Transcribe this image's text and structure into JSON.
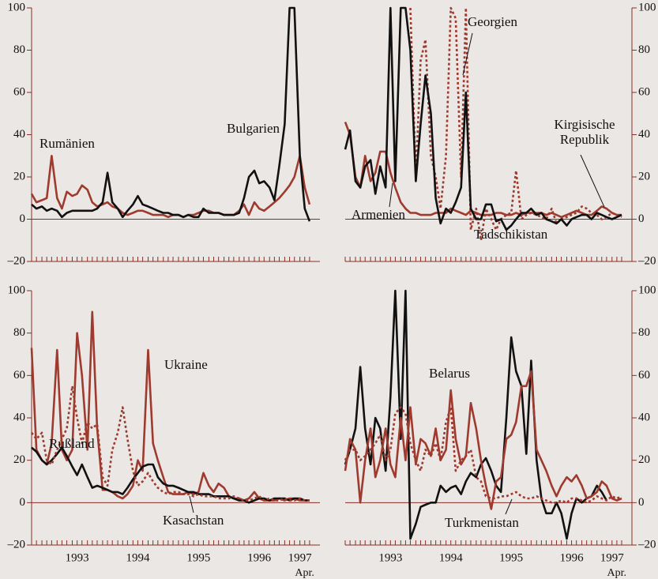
{
  "chart_data": [
    {
      "type": "line",
      "y_axis": "left",
      "zero_line": true,
      "xlim": [
        1992.75,
        1997.5
      ],
      "ylim": [
        -20,
        100
      ],
      "yticks": [
        {
          "value": -20,
          "label": "–20"
        },
        0,
        20,
        40,
        60,
        80,
        100
      ],
      "x": [
        1992.75,
        1992.83,
        1992.92,
        1993,
        1993.08,
        1993.17,
        1993.25,
        1993.33,
        1993.42,
        1993.5,
        1993.58,
        1993.67,
        1993.75,
        1993.83,
        1993.92,
        1994,
        1994.08,
        1994.17,
        1994.25,
        1994.33,
        1994.42,
        1994.5,
        1994.58,
        1994.67,
        1994.75,
        1994.83,
        1994.92,
        1995,
        1995.08,
        1995.17,
        1995.25,
        1995.33,
        1995.42,
        1995.5,
        1995.58,
        1995.67,
        1995.75,
        1995.83,
        1995.92,
        1996,
        1996.08,
        1996.17,
        1996.25,
        1996.33,
        1996.42,
        1996.5,
        1996.58,
        1996.67,
        1996.75,
        1996.83,
        1996.92,
        1997,
        1997.08,
        1997.17,
        1997.25,
        1997.33
      ],
      "series": [
        {
          "name": "Rumänien",
          "color": "#9e3a2e",
          "dash": false,
          "values": [
            12,
            8,
            9,
            10,
            30,
            10,
            5,
            13,
            11,
            12,
            16,
            14,
            8,
            6,
            7,
            8,
            6,
            5,
            3,
            2,
            3,
            4,
            4,
            3,
            2,
            2,
            2,
            1,
            2,
            2,
            1,
            2,
            2,
            3,
            4,
            4,
            3,
            3,
            2,
            2,
            2,
            4,
            7,
            2,
            8,
            5,
            4,
            6,
            8,
            10,
            13,
            16,
            20,
            30,
            15,
            7
          ]
        },
        {
          "name": "Bulgarien",
          "color": "#111111",
          "dash": false,
          "values": [
            7,
            5,
            6,
            4,
            5,
            4,
            1,
            3,
            4,
            4,
            4,
            4,
            4,
            5,
            8,
            22,
            8,
            5,
            1,
            4,
            7,
            11,
            7,
            6,
            5,
            4,
            3,
            3,
            2,
            2,
            1,
            2,
            1,
            1,
            5,
            3,
            3,
            3,
            2,
            2,
            2,
            3,
            10,
            20,
            23,
            17,
            18,
            15,
            9,
            25,
            45,
            100,
            100,
            30,
            5,
            -1
          ]
        }
      ]
    },
    {
      "type": "line",
      "y_axis": "right",
      "zero_line": true,
      "xlim": [
        1992.75,
        1997.5
      ],
      "ylim": [
        -20,
        100
      ],
      "yticks": [
        {
          "value": -20,
          "label": "–20"
        },
        0,
        20,
        40,
        60,
        80,
        100
      ],
      "x": [
        1992.75,
        1992.83,
        1992.92,
        1993,
        1993.08,
        1993.17,
        1993.25,
        1993.33,
        1993.42,
        1993.5,
        1993.58,
        1993.67,
        1993.75,
        1993.83,
        1993.92,
        1994,
        1994.08,
        1994.17,
        1994.25,
        1994.33,
        1994.42,
        1994.5,
        1994.58,
        1994.67,
        1994.75,
        1994.83,
        1994.92,
        1995,
        1995.08,
        1995.17,
        1995.25,
        1995.33,
        1995.42,
        1995.5,
        1995.58,
        1995.67,
        1995.75,
        1995.83,
        1995.92,
        1996,
        1996.08,
        1996.17,
        1996.25,
        1996.33,
        1996.42,
        1996.5,
        1996.58,
        1996.67,
        1996.75,
        1996.83,
        1996.92,
        1997,
        1997.08,
        1997.17,
        1997.25,
        1997.33
      ],
      "series": [
        {
          "name": "Armenien",
          "color": "#9e3a2e",
          "dash": false,
          "values": [
            46,
            40,
            20,
            15,
            30,
            18,
            22,
            32,
            32,
            22,
            15,
            8,
            5,
            3,
            3,
            2,
            2,
            2,
            3,
            3,
            3,
            5,
            4,
            3,
            2,
            4,
            3,
            2,
            2,
            2,
            3,
            3,
            2,
            2,
            3,
            2,
            3,
            3,
            3,
            3,
            2,
            3,
            2,
            1,
            2,
            3,
            4,
            3,
            2,
            2,
            4,
            6,
            5,
            3,
            2,
            2
          ]
        },
        {
          "name": "Georgien",
          "color": "#9e3a2e",
          "dash": true,
          "values": [
            null,
            null,
            null,
            null,
            null,
            null,
            null,
            null,
            null,
            null,
            null,
            null,
            null,
            100,
            20,
            75,
            85,
            30,
            20,
            5,
            30,
            100,
            95,
            20,
            100,
            -5,
            5,
            -10,
            5,
            0,
            -5,
            0,
            2,
            3,
            23,
            0,
            2,
            3,
            2,
            1,
            0,
            5,
            -2,
            0,
            1,
            2,
            3,
            6,
            5,
            3,
            2,
            0,
            1,
            3,
            2,
            1
          ]
        },
        {
          "name": "Kirgisische Republik",
          "color": "#111111",
          "dash": false,
          "values": [
            33,
            42,
            18,
            15,
            25,
            28,
            12,
            25,
            15,
            100,
            18,
            100,
            100,
            80,
            18,
            45,
            68,
            50,
            10,
            -2,
            5,
            3,
            8,
            15,
            60,
            5,
            0,
            0,
            7,
            7,
            -1,
            0,
            -5,
            -3,
            0,
            3,
            3,
            5,
            2,
            3,
            0,
            -1,
            -2,
            0,
            -3,
            0,
            1,
            2,
            2,
            0,
            3,
            2,
            1,
            0,
            1,
            2
          ]
        }
      ]
    },
    {
      "type": "line",
      "y_axis": "left",
      "zero_line": true,
      "xlim": [
        1992.75,
        1997.5
      ],
      "ylim": [
        -20,
        100
      ],
      "yticks": [
        {
          "value": -20,
          "label": "–20"
        },
        0,
        20,
        40,
        60,
        80,
        100
      ],
      "xticks": [
        {
          "value": 1993.5,
          "label": "1993"
        },
        {
          "value": 1994.5,
          "label": "1994"
        },
        {
          "value": 1995.5,
          "label": "1995"
        },
        {
          "value": 1996.5,
          "label": "1996"
        },
        {
          "value": 1997.17,
          "label": "1997"
        }
      ],
      "annotation": "Apr.",
      "x": [
        1992.75,
        1992.83,
        1992.92,
        1993,
        1993.08,
        1993.17,
        1993.25,
        1993.33,
        1993.42,
        1993.5,
        1993.58,
        1993.67,
        1993.75,
        1993.83,
        1993.92,
        1994,
        1994.08,
        1994.17,
        1994.25,
        1994.33,
        1994.42,
        1994.5,
        1994.58,
        1994.67,
        1994.75,
        1994.83,
        1994.92,
        1995,
        1995.08,
        1995.17,
        1995.25,
        1995.33,
        1995.42,
        1995.5,
        1995.58,
        1995.67,
        1995.75,
        1995.83,
        1995.92,
        1996,
        1996.08,
        1996.17,
        1996.25,
        1996.33,
        1996.42,
        1996.5,
        1996.58,
        1996.67,
        1996.75,
        1996.83,
        1996.92,
        1997,
        1997.08,
        1997.17,
        1997.25,
        1997.33
      ],
      "series": [
        {
          "name": "Ukraine",
          "color": "#9e3a2e",
          "dash": false,
          "values": [
            73,
            25,
            20,
            18,
            28,
            72,
            25,
            20,
            25,
            80,
            60,
            25,
            90,
            35,
            6,
            6,
            5,
            3,
            2,
            4,
            8,
            20,
            15,
            72,
            28,
            20,
            12,
            5,
            4,
            4,
            4,
            5,
            4,
            5,
            14,
            8,
            5,
            9,
            7,
            3,
            2,
            2,
            1,
            2,
            5,
            2,
            1,
            1,
            1,
            2,
            1,
            2,
            2,
            1,
            1,
            1
          ]
        },
        {
          "name": "Rußland",
          "color": "#111111",
          "dash": false,
          "values": [
            26,
            24,
            20,
            18,
            20,
            23,
            26,
            22,
            17,
            13,
            18,
            12,
            7,
            8,
            7,
            6,
            5,
            5,
            4,
            7,
            11,
            14,
            17,
            18,
            18,
            12,
            9,
            8,
            8,
            7,
            6,
            5,
            5,
            4,
            4,
            4,
            3,
            3,
            3,
            3,
            2,
            1,
            1,
            0,
            1,
            2,
            2,
            1,
            2,
            2,
            2,
            1,
            2,
            2,
            1,
            1
          ]
        },
        {
          "name": "Kasachstan",
          "color": "#9e3a2e",
          "dash": true,
          "values": [
            33,
            30,
            33,
            20,
            18,
            25,
            30,
            35,
            55,
            40,
            28,
            38,
            35,
            37,
            12,
            8,
            25,
            33,
            45,
            30,
            15,
            8,
            10,
            14,
            10,
            7,
            5,
            4,
            5,
            5,
            4,
            4,
            3,
            4,
            3,
            3,
            3,
            2,
            2,
            2,
            3,
            2,
            1,
            1,
            2,
            3,
            1,
            2,
            1,
            1,
            2,
            1,
            1,
            2,
            1,
            1
          ]
        }
      ]
    },
    {
      "type": "line",
      "y_axis": "right",
      "zero_line": true,
      "xlim": [
        1992.75,
        1997.5
      ],
      "ylim": [
        -20,
        100
      ],
      "yticks": [
        {
          "value": -20,
          "label": "–20"
        },
        0,
        20,
        40,
        60,
        80,
        100
      ],
      "xticks": [
        {
          "value": 1993.5,
          "label": "1993"
        },
        {
          "value": 1994.5,
          "label": "1994"
        },
        {
          "value": 1995.5,
          "label": "1995"
        },
        {
          "value": 1996.5,
          "label": "1996"
        },
        {
          "value": 1997.17,
          "label": "1997"
        }
      ],
      "annotation": "Apr.",
      "x": [
        1992.75,
        1992.83,
        1992.92,
        1993,
        1993.08,
        1993.17,
        1993.25,
        1993.33,
        1993.42,
        1993.5,
        1993.58,
        1993.67,
        1993.75,
        1993.83,
        1993.92,
        1994,
        1994.08,
        1994.17,
        1994.25,
        1994.33,
        1994.42,
        1994.5,
        1994.58,
        1994.67,
        1994.75,
        1994.83,
        1994.92,
        1995,
        1995.08,
        1995.17,
        1995.25,
        1995.33,
        1995.42,
        1995.5,
        1995.58,
        1995.67,
        1995.75,
        1995.83,
        1995.92,
        1996,
        1996.08,
        1996.17,
        1996.25,
        1996.33,
        1996.42,
        1996.5,
        1996.58,
        1996.67,
        1996.75,
        1996.83,
        1996.92,
        1997,
        1997.08,
        1997.17,
        1997.25,
        1997.33
      ],
      "series": [
        {
          "name": "Tadschikistan",
          "color": "#111111",
          "dash": false,
          "values": [
            18,
            25,
            35,
            64,
            35,
            18,
            40,
            35,
            15,
            50,
            100,
            30,
            100,
            -17,
            -10,
            -2,
            -1,
            0,
            0,
            8,
            5,
            7,
            8,
            4,
            10,
            14,
            12,
            18,
            21,
            15,
            8,
            5,
            40,
            78,
            62,
            55,
            23,
            67,
            20,
            2,
            -5,
            -5,
            0,
            -5,
            -17,
            -5,
            2,
            0,
            2,
            3,
            8,
            5,
            1,
            null,
            null,
            null
          ]
        },
        {
          "name": "Belarus",
          "color": "#9e3a2e",
          "dash": false,
          "values": [
            15,
            30,
            25,
            0,
            20,
            35,
            12,
            20,
            35,
            18,
            12,
            40,
            20,
            45,
            18,
            30,
            28,
            22,
            35,
            20,
            25,
            53,
            30,
            18,
            22,
            47,
            35,
            20,
            8,
            -3,
            10,
            12,
            30,
            32,
            38,
            55,
            55,
            62,
            25,
            20,
            15,
            8,
            3,
            8,
            12,
            10,
            13,
            8,
            2,
            3,
            5,
            10,
            8,
            2,
            1,
            2
          ]
        },
        {
          "name": "Turkmenistan",
          "color": "#9e3a2e",
          "dash": true,
          "values": [
            20,
            25,
            25,
            20,
            22,
            25,
            28,
            32,
            20,
            25,
            42,
            45,
            42,
            28,
            20,
            15,
            25,
            22,
            28,
            20,
            38,
            45,
            15,
            20,
            22,
            25,
            12,
            10,
            3,
            2,
            2,
            3,
            3,
            4,
            5,
            3,
            2,
            2,
            3,
            2,
            1,
            0,
            0,
            1,
            0,
            2,
            2,
            1,
            0,
            1,
            3,
            2,
            1,
            3,
            2,
            3
          ]
        }
      ]
    }
  ]
}
